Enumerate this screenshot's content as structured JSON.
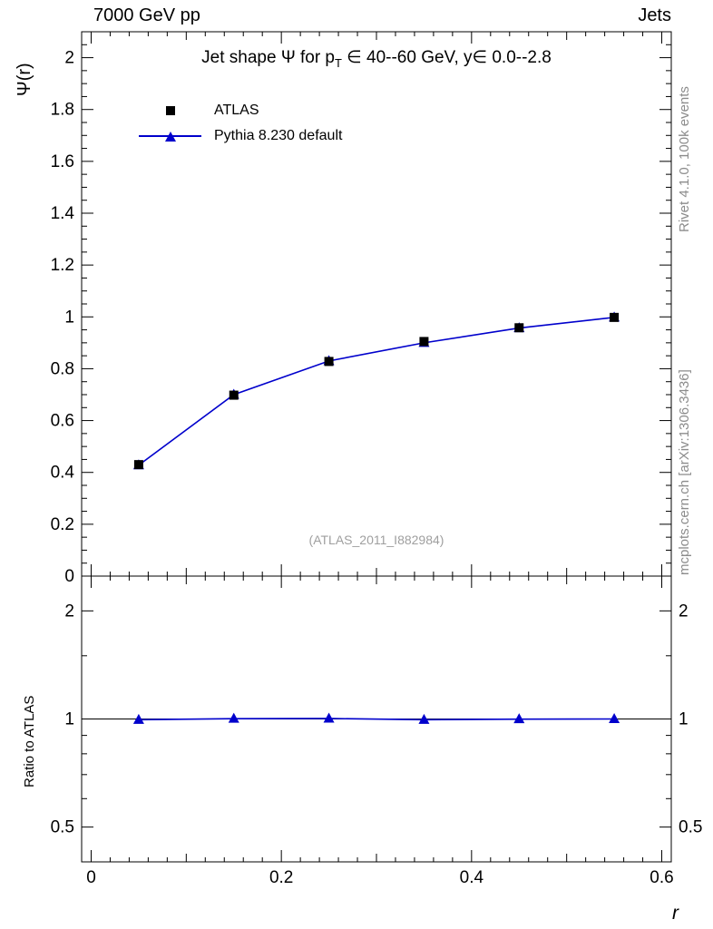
{
  "header": {
    "left": "7000 GeV pp",
    "right": "Jets"
  },
  "side_notes": {
    "top_right": "Rivet 4.1.0,  100k events",
    "bottom_right": "mcplots.cern.ch [arXiv:1306.3436]"
  },
  "watermark": "(ATLAS_2011_I882984)",
  "colors": {
    "mc_blue": "#0000cc",
    "ref_black": "#000000",
    "note_gray": "#8c8c8c",
    "watermark_gray": "#9f9f9f"
  },
  "chart_data": {
    "type": "line",
    "title": "Jet shape Ψ for p_T ∈ 40--60 GeV, y∈ 0.0--2.8",
    "title_parts": {
      "pre": "Jet shape Ψ for p",
      "sub": "T",
      "post": " ∈ 40--60 GeV, y∈ 0.0--2.8"
    },
    "xlabel": "r",
    "ylabel": "Ψ(r)",
    "xlim": [
      -0.01,
      0.61
    ],
    "ylim": [
      0,
      2.1
    ],
    "xticks": [
      0,
      0.2,
      0.4,
      0.6
    ],
    "yticks": [
      0,
      0.2,
      0.4,
      0.6,
      0.8,
      1,
      1.2,
      1.4,
      1.6,
      1.8,
      2
    ],
    "x": [
      0.05,
      0.15,
      0.25,
      0.35,
      0.45,
      0.55
    ],
    "series": [
      {
        "name": "ATLAS",
        "marker": "square",
        "line": false,
        "color": "#000000",
        "values": [
          0.43,
          0.698,
          0.828,
          0.905,
          0.958,
          0.998
        ]
      },
      {
        "name": "Pythia 8.230 default",
        "marker": "triangle",
        "line": true,
        "color": "#0000cc",
        "values": [
          0.428,
          0.7,
          0.83,
          0.9,
          0.957,
          0.998
        ]
      }
    ],
    "ratio": {
      "ylabel": "Ratio to ATLAS",
      "yticks": [
        0.5,
        1,
        2
      ],
      "minor_yticks": [
        0.4,
        0.6,
        0.7,
        0.8,
        0.9,
        1.5
      ],
      "log_range": [
        0.4,
        2.5
      ],
      "reference": 1,
      "values": [
        0.995,
        1.002,
        1.003,
        0.995,
        0.999,
        1.0
      ]
    },
    "legend_position": "top-left",
    "grid": false
  }
}
